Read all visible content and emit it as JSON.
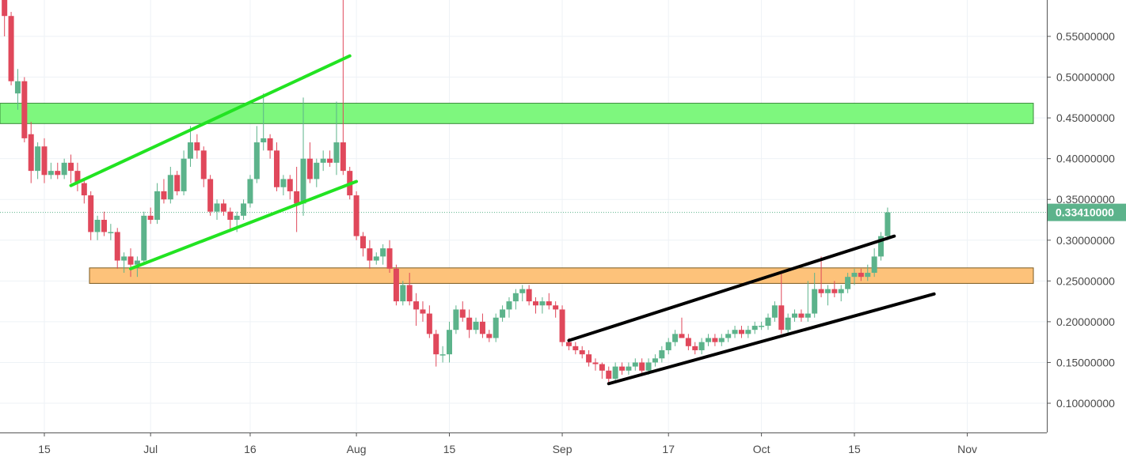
{
  "chart_data": {
    "type": "candlestick",
    "x_tick_labels": [
      "15",
      "Jul",
      "16",
      "Aug",
      "15",
      "Sep",
      "17",
      "Oct",
      "15",
      "Nov"
    ],
    "y_tick_labels": [
      "0.10000000",
      "0.15000000",
      "0.20000000",
      "0.25000000",
      "0.30000000",
      "0.35000000",
      "0.40000000",
      "0.45000000",
      "0.50000000",
      "0.55000000"
    ],
    "y_ticks": [
      0.1,
      0.15,
      0.2,
      0.25,
      0.3,
      0.35,
      0.4,
      0.45,
      0.5,
      0.55
    ],
    "ylim": [
      0.06,
      0.605
    ],
    "grid": true,
    "colors": {
      "up": "#5cb38b",
      "down": "#e0485b",
      "grid": "#eef2f6",
      "last_price_bg": "#5cb38b"
    },
    "last_price": {
      "value": 0.3341,
      "label": "0.33410000"
    },
    "zones": [
      {
        "name": "resistance",
        "y_low": 0.443,
        "y_high": 0.468,
        "fill": "#7ef77e",
        "stroke": "#3a8a3a"
      },
      {
        "name": "support",
        "y_low": 0.247,
        "y_high": 0.266,
        "fill": "#fdc27a",
        "stroke": "#7a5a20"
      }
    ],
    "candles": [
      {
        "d": "Jun 9",
        "o": 0.61,
        "h": 0.63,
        "l": 0.55,
        "c": 0.575
      },
      {
        "d": "Jun 10",
        "o": 0.575,
        "h": 0.58,
        "l": 0.49,
        "c": 0.495
      },
      {
        "d": "Jun 11",
        "o": 0.48,
        "h": 0.51,
        "l": 0.46,
        "c": 0.495
      },
      {
        "d": "Jun 12",
        "o": 0.495,
        "h": 0.5,
        "l": 0.42,
        "c": 0.425
      },
      {
        "d": "Jun 13",
        "o": 0.43,
        "h": 0.445,
        "l": 0.37,
        "c": 0.385
      },
      {
        "d": "Jun 14",
        "o": 0.385,
        "h": 0.42,
        "l": 0.375,
        "c": 0.415
      },
      {
        "d": "Jun 15",
        "o": 0.415,
        "h": 0.425,
        "l": 0.37,
        "c": 0.38
      },
      {
        "d": "Jun 16",
        "o": 0.38,
        "h": 0.395,
        "l": 0.375,
        "c": 0.385
      },
      {
        "d": "Jun 17",
        "o": 0.385,
        "h": 0.395,
        "l": 0.375,
        "c": 0.38
      },
      {
        "d": "Jun 18",
        "o": 0.38,
        "h": 0.4,
        "l": 0.375,
        "c": 0.395
      },
      {
        "d": "Jun 19",
        "o": 0.395,
        "h": 0.405,
        "l": 0.37,
        "c": 0.385
      },
      {
        "d": "Jun 20",
        "o": 0.385,
        "h": 0.395,
        "l": 0.36,
        "c": 0.37
      },
      {
        "d": "Jun 21",
        "o": 0.37,
        "h": 0.375,
        "l": 0.345,
        "c": 0.355
      },
      {
        "d": "Jun 22",
        "o": 0.355,
        "h": 0.36,
        "l": 0.3,
        "c": 0.31
      },
      {
        "d": "Jun 23",
        "o": 0.31,
        "h": 0.33,
        "l": 0.3,
        "c": 0.325
      },
      {
        "d": "Jun 24",
        "o": 0.325,
        "h": 0.335,
        "l": 0.305,
        "c": 0.31
      },
      {
        "d": "Jun 25",
        "o": 0.31,
        "h": 0.32,
        "l": 0.3,
        "c": 0.31
      },
      {
        "d": "Jun 26",
        "o": 0.31,
        "h": 0.315,
        "l": 0.265,
        "c": 0.275
      },
      {
        "d": "Jun 27",
        "o": 0.275,
        "h": 0.285,
        "l": 0.26,
        "c": 0.28
      },
      {
        "d": "Jun 28",
        "o": 0.28,
        "h": 0.29,
        "l": 0.255,
        "c": 0.27
      },
      {
        "d": "Jun 29",
        "o": 0.27,
        "h": 0.28,
        "l": 0.255,
        "c": 0.275
      },
      {
        "d": "Jun 30",
        "o": 0.275,
        "h": 0.335,
        "l": 0.27,
        "c": 0.33
      },
      {
        "d": "Jul 1",
        "o": 0.33,
        "h": 0.34,
        "l": 0.32,
        "c": 0.325
      },
      {
        "d": "Jul 2",
        "o": 0.325,
        "h": 0.37,
        "l": 0.32,
        "c": 0.36
      },
      {
        "d": "Jul 3",
        "o": 0.36,
        "h": 0.375,
        "l": 0.345,
        "c": 0.35
      },
      {
        "d": "Jul 4",
        "o": 0.35,
        "h": 0.39,
        "l": 0.345,
        "c": 0.38
      },
      {
        "d": "Jul 5",
        "o": 0.38,
        "h": 0.385,
        "l": 0.355,
        "c": 0.36
      },
      {
        "d": "Jul 6",
        "o": 0.36,
        "h": 0.41,
        "l": 0.355,
        "c": 0.4
      },
      {
        "d": "Jul 7",
        "o": 0.4,
        "h": 0.44,
        "l": 0.39,
        "c": 0.42
      },
      {
        "d": "Jul 8",
        "o": 0.42,
        "h": 0.43,
        "l": 0.4,
        "c": 0.41
      },
      {
        "d": "Jul 9",
        "o": 0.41,
        "h": 0.415,
        "l": 0.365,
        "c": 0.375
      },
      {
        "d": "Jul 10",
        "o": 0.375,
        "h": 0.38,
        "l": 0.33,
        "c": 0.335
      },
      {
        "d": "Jul 11",
        "o": 0.335,
        "h": 0.35,
        "l": 0.325,
        "c": 0.345
      },
      {
        "d": "Jul 12",
        "o": 0.345,
        "h": 0.35,
        "l": 0.33,
        "c": 0.335
      },
      {
        "d": "Jul 13",
        "o": 0.335,
        "h": 0.34,
        "l": 0.31,
        "c": 0.325
      },
      {
        "d": "Jul 14",
        "o": 0.325,
        "h": 0.335,
        "l": 0.31,
        "c": 0.33
      },
      {
        "d": "Jul 15",
        "o": 0.33,
        "h": 0.35,
        "l": 0.325,
        "c": 0.345
      },
      {
        "d": "Jul 16",
        "o": 0.345,
        "h": 0.38,
        "l": 0.34,
        "c": 0.375
      },
      {
        "d": "Jul 17",
        "o": 0.375,
        "h": 0.44,
        "l": 0.37,
        "c": 0.42
      },
      {
        "d": "Jul 18",
        "o": 0.42,
        "h": 0.48,
        "l": 0.41,
        "c": 0.425
      },
      {
        "d": "Jul 19",
        "o": 0.425,
        "h": 0.43,
        "l": 0.4,
        "c": 0.41
      },
      {
        "d": "Jul 20",
        "o": 0.41,
        "h": 0.42,
        "l": 0.36,
        "c": 0.365
      },
      {
        "d": "Jul 21",
        "o": 0.365,
        "h": 0.38,
        "l": 0.355,
        "c": 0.375
      },
      {
        "d": "Jul 22",
        "o": 0.375,
        "h": 0.38,
        "l": 0.35,
        "c": 0.36
      },
      {
        "d": "Jul 23",
        "o": 0.36,
        "h": 0.39,
        "l": 0.31,
        "c": 0.345
      },
      {
        "d": "Jul 24",
        "o": 0.345,
        "h": 0.475,
        "l": 0.33,
        "c": 0.4
      },
      {
        "d": "Jul 25",
        "o": 0.4,
        "h": 0.42,
        "l": 0.37,
        "c": 0.375
      },
      {
        "d": "Jul 26",
        "o": 0.375,
        "h": 0.4,
        "l": 0.365,
        "c": 0.395
      },
      {
        "d": "Jul 27",
        "o": 0.395,
        "h": 0.41,
        "l": 0.385,
        "c": 0.4
      },
      {
        "d": "Jul 28",
        "o": 0.4,
        "h": 0.41,
        "l": 0.39,
        "c": 0.395
      },
      {
        "d": "Jul 29",
        "o": 0.395,
        "h": 0.47,
        "l": 0.38,
        "c": 0.42
      },
      {
        "d": "Jul 30",
        "o": 0.42,
        "h": 0.6,
        "l": 0.38,
        "c": 0.385
      },
      {
        "d": "Jul 31",
        "o": 0.385,
        "h": 0.39,
        "l": 0.35,
        "c": 0.355
      },
      {
        "d": "Aug 1",
        "o": 0.355,
        "h": 0.36,
        "l": 0.3,
        "c": 0.305
      },
      {
        "d": "Aug 2",
        "o": 0.305,
        "h": 0.31,
        "l": 0.28,
        "c": 0.29
      },
      {
        "d": "Aug 3",
        "o": 0.29,
        "h": 0.3,
        "l": 0.265,
        "c": 0.275
      },
      {
        "d": "Aug 4",
        "o": 0.275,
        "h": 0.285,
        "l": 0.27,
        "c": 0.28
      },
      {
        "d": "Aug 5",
        "o": 0.28,
        "h": 0.295,
        "l": 0.27,
        "c": 0.29
      },
      {
        "d": "Aug 6",
        "o": 0.29,
        "h": 0.3,
        "l": 0.26,
        "c": 0.265
      },
      {
        "d": "Aug 7",
        "o": 0.265,
        "h": 0.27,
        "l": 0.22,
        "c": 0.225
      },
      {
        "d": "Aug 8",
        "o": 0.225,
        "h": 0.25,
        "l": 0.22,
        "c": 0.245
      },
      {
        "d": "Aug 9",
        "o": 0.245,
        "h": 0.26,
        "l": 0.22,
        "c": 0.225
      },
      {
        "d": "Aug 10",
        "o": 0.225,
        "h": 0.235,
        "l": 0.195,
        "c": 0.215
      },
      {
        "d": "Aug 11",
        "o": 0.215,
        "h": 0.225,
        "l": 0.2,
        "c": 0.21
      },
      {
        "d": "Aug 12",
        "o": 0.21,
        "h": 0.22,
        "l": 0.18,
        "c": 0.185
      },
      {
        "d": "Aug 13",
        "o": 0.185,
        "h": 0.19,
        "l": 0.145,
        "c": 0.16
      },
      {
        "d": "Aug 14",
        "o": 0.16,
        "h": 0.17,
        "l": 0.15,
        "c": 0.16
      },
      {
        "d": "Aug 15",
        "o": 0.16,
        "h": 0.2,
        "l": 0.15,
        "c": 0.19
      },
      {
        "d": "Aug 16",
        "o": 0.19,
        "h": 0.22,
        "l": 0.185,
        "c": 0.215
      },
      {
        "d": "Aug 17",
        "o": 0.215,
        "h": 0.225,
        "l": 0.2,
        "c": 0.205
      },
      {
        "d": "Aug 18",
        "o": 0.205,
        "h": 0.215,
        "l": 0.18,
        "c": 0.19
      },
      {
        "d": "Aug 19",
        "o": 0.19,
        "h": 0.205,
        "l": 0.185,
        "c": 0.2
      },
      {
        "d": "Aug 20",
        "o": 0.2,
        "h": 0.21,
        "l": 0.18,
        "c": 0.185
      },
      {
        "d": "Aug 21",
        "o": 0.185,
        "h": 0.19,
        "l": 0.175,
        "c": 0.18
      },
      {
        "d": "Aug 22",
        "o": 0.18,
        "h": 0.21,
        "l": 0.175,
        "c": 0.205
      },
      {
        "d": "Aug 23",
        "o": 0.205,
        "h": 0.22,
        "l": 0.2,
        "c": 0.215
      },
      {
        "d": "Aug 24",
        "o": 0.215,
        "h": 0.23,
        "l": 0.205,
        "c": 0.225
      },
      {
        "d": "Aug 25",
        "o": 0.225,
        "h": 0.24,
        "l": 0.215,
        "c": 0.235
      },
      {
        "d": "Aug 26",
        "o": 0.235,
        "h": 0.245,
        "l": 0.225,
        "c": 0.24
      },
      {
        "d": "Aug 27",
        "o": 0.24,
        "h": 0.245,
        "l": 0.22,
        "c": 0.225
      },
      {
        "d": "Aug 28",
        "o": 0.225,
        "h": 0.23,
        "l": 0.21,
        "c": 0.22
      },
      {
        "d": "Aug 29",
        "o": 0.22,
        "h": 0.23,
        "l": 0.21,
        "c": 0.225
      },
      {
        "d": "Aug 30",
        "o": 0.225,
        "h": 0.235,
        "l": 0.215,
        "c": 0.22
      },
      {
        "d": "Aug 31",
        "o": 0.22,
        "h": 0.225,
        "l": 0.205,
        "c": 0.215
      },
      {
        "d": "Sep 1",
        "o": 0.215,
        "h": 0.22,
        "l": 0.17,
        "c": 0.175
      },
      {
        "d": "Sep 2",
        "o": 0.175,
        "h": 0.18,
        "l": 0.165,
        "c": 0.17
      },
      {
        "d": "Sep 3",
        "o": 0.17,
        "h": 0.175,
        "l": 0.16,
        "c": 0.165
      },
      {
        "d": "Sep 4",
        "o": 0.165,
        "h": 0.17,
        "l": 0.155,
        "c": 0.16
      },
      {
        "d": "Sep 5",
        "o": 0.16,
        "h": 0.165,
        "l": 0.145,
        "c": 0.15
      },
      {
        "d": "Sep 6",
        "o": 0.15,
        "h": 0.155,
        "l": 0.14,
        "c": 0.148
      },
      {
        "d": "Sep 7",
        "o": 0.148,
        "h": 0.15,
        "l": 0.13,
        "c": 0.14
      },
      {
        "d": "Sep 8",
        "o": 0.14,
        "h": 0.145,
        "l": 0.125,
        "c": 0.13
      },
      {
        "d": "Sep 9",
        "o": 0.13,
        "h": 0.15,
        "l": 0.125,
        "c": 0.145
      },
      {
        "d": "Sep 10",
        "o": 0.145,
        "h": 0.15,
        "l": 0.135,
        "c": 0.14
      },
      {
        "d": "Sep 11",
        "o": 0.14,
        "h": 0.15,
        "l": 0.135,
        "c": 0.145
      },
      {
        "d": "Sep 12",
        "o": 0.145,
        "h": 0.155,
        "l": 0.14,
        "c": 0.15
      },
      {
        "d": "Sep 13",
        "o": 0.15,
        "h": 0.155,
        "l": 0.135,
        "c": 0.14
      },
      {
        "d": "Sep 14",
        "o": 0.14,
        "h": 0.155,
        "l": 0.135,
        "c": 0.15
      },
      {
        "d": "Sep 15",
        "o": 0.15,
        "h": 0.16,
        "l": 0.145,
        "c": 0.155
      },
      {
        "d": "Sep 16",
        "o": 0.155,
        "h": 0.17,
        "l": 0.15,
        "c": 0.165
      },
      {
        "d": "Sep 17",
        "o": 0.165,
        "h": 0.18,
        "l": 0.16,
        "c": 0.175
      },
      {
        "d": "Sep 18",
        "o": 0.175,
        "h": 0.19,
        "l": 0.17,
        "c": 0.185
      },
      {
        "d": "Sep 19",
        "o": 0.185,
        "h": 0.205,
        "l": 0.18,
        "c": 0.18
      },
      {
        "d": "Sep 20",
        "o": 0.18,
        "h": 0.185,
        "l": 0.165,
        "c": 0.17
      },
      {
        "d": "Sep 21",
        "o": 0.17,
        "h": 0.175,
        "l": 0.16,
        "c": 0.165
      },
      {
        "d": "Sep 22",
        "o": 0.165,
        "h": 0.18,
        "l": 0.16,
        "c": 0.175
      },
      {
        "d": "Sep 23",
        "o": 0.175,
        "h": 0.185,
        "l": 0.17,
        "c": 0.18
      },
      {
        "d": "Sep 24",
        "o": 0.18,
        "h": 0.185,
        "l": 0.17,
        "c": 0.175
      },
      {
        "d": "Sep 25",
        "o": 0.175,
        "h": 0.185,
        "l": 0.17,
        "c": 0.18
      },
      {
        "d": "Sep 26",
        "o": 0.18,
        "h": 0.19,
        "l": 0.175,
        "c": 0.185
      },
      {
        "d": "Sep 27",
        "o": 0.185,
        "h": 0.195,
        "l": 0.18,
        "c": 0.19
      },
      {
        "d": "Sep 28",
        "o": 0.19,
        "h": 0.195,
        "l": 0.18,
        "c": 0.185
      },
      {
        "d": "Sep 29",
        "o": 0.185,
        "h": 0.195,
        "l": 0.18,
        "c": 0.19
      },
      {
        "d": "Sep 30",
        "o": 0.19,
        "h": 0.2,
        "l": 0.185,
        "c": 0.195
      },
      {
        "d": "Oct 1",
        "o": 0.195,
        "h": 0.2,
        "l": 0.19,
        "c": 0.195
      },
      {
        "d": "Oct 2",
        "o": 0.195,
        "h": 0.21,
        "l": 0.19,
        "c": 0.205
      },
      {
        "d": "Oct 3",
        "o": 0.205,
        "h": 0.225,
        "l": 0.2,
        "c": 0.22
      },
      {
        "d": "Oct 4",
        "o": 0.22,
        "h": 0.26,
        "l": 0.185,
        "c": 0.19
      },
      {
        "d": "Oct 5",
        "o": 0.19,
        "h": 0.21,
        "l": 0.185,
        "c": 0.205
      },
      {
        "d": "Oct 6",
        "o": 0.205,
        "h": 0.215,
        "l": 0.2,
        "c": 0.21
      },
      {
        "d": "Oct 7",
        "o": 0.21,
        "h": 0.215,
        "l": 0.2,
        "c": 0.205
      },
      {
        "d": "Oct 8",
        "o": 0.205,
        "h": 0.25,
        "l": 0.2,
        "c": 0.21
      },
      {
        "d": "Oct 9",
        "o": 0.21,
        "h": 0.26,
        "l": 0.205,
        "c": 0.24
      },
      {
        "d": "Oct 10",
        "o": 0.24,
        "h": 0.28,
        "l": 0.23,
        "c": 0.235
      },
      {
        "d": "Oct 11",
        "o": 0.235,
        "h": 0.245,
        "l": 0.22,
        "c": 0.24
      },
      {
        "d": "Oct 12",
        "o": 0.24,
        "h": 0.25,
        "l": 0.23,
        "c": 0.235
      },
      {
        "d": "Oct 13",
        "o": 0.235,
        "h": 0.245,
        "l": 0.225,
        "c": 0.24
      },
      {
        "d": "Oct 14",
        "o": 0.24,
        "h": 0.26,
        "l": 0.235,
        "c": 0.255
      },
      {
        "d": "Oct 15",
        "o": 0.255,
        "h": 0.265,
        "l": 0.245,
        "c": 0.26
      },
      {
        "d": "Oct 16",
        "o": 0.26,
        "h": 0.265,
        "l": 0.25,
        "c": 0.255
      },
      {
        "d": "Oct 17",
        "o": 0.255,
        "h": 0.27,
        "l": 0.25,
        "c": 0.26
      },
      {
        "d": "Oct 18",
        "o": 0.26,
        "h": 0.29,
        "l": 0.255,
        "c": 0.28
      },
      {
        "d": "Oct 19",
        "o": 0.28,
        "h": 0.31,
        "l": 0.275,
        "c": 0.305
      },
      {
        "d": "Oct 20",
        "o": 0.305,
        "h": 0.34,
        "l": 0.3,
        "c": 0.3341
      }
    ],
    "trendlines": [
      {
        "name": "green-channel-upper",
        "color": "#22e322",
        "points": [
          [
            "Jun 19",
            0.367
          ],
          [
            "Jul 31",
            0.526
          ]
        ]
      },
      {
        "name": "green-channel-lower",
        "color": "#22e322",
        "points": [
          [
            "Jun 28",
            0.265
          ],
          [
            "Aug 1",
            0.372
          ]
        ]
      },
      {
        "name": "black-channel-upper",
        "color": "#000000",
        "points": [
          [
            "Sep 2",
            0.177
          ],
          [
            "Oct 21",
            0.305
          ]
        ]
      },
      {
        "name": "black-channel-lower",
        "color": "#000000",
        "points": [
          [
            "Sep 8",
            0.124
          ],
          [
            "Oct 27",
            0.234
          ]
        ]
      }
    ]
  }
}
